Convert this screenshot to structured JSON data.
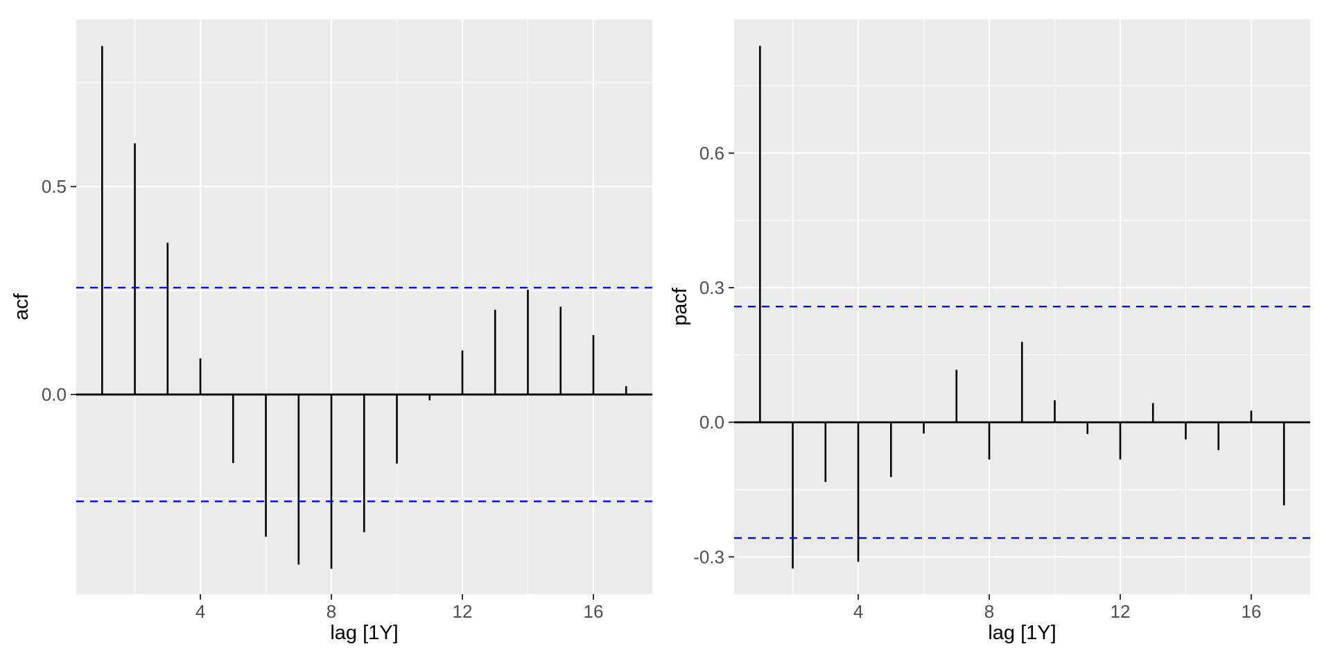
{
  "figure": {
    "background": "#FFFFFF",
    "description": "Side-by-side ACF and PACF correlogram panels, ggplot2 style"
  },
  "colors": {
    "panel_background": "#EBEBEB",
    "gridline": "#FFFFFF",
    "spike": "#000000",
    "zero_line": "#000000",
    "confidence_line": "#0000FF",
    "tick_mark": "#333333",
    "tick_label_text": "#4D4D4D",
    "axis_title_text": "#000000"
  },
  "chart_data": [
    {
      "type": "bar",
      "name": "acf",
      "title": "",
      "xlabel": "lag [1Y]",
      "ylabel": "acf",
      "lags": [
        1,
        2,
        3,
        4,
        5,
        6,
        7,
        8,
        9,
        10,
        11,
        12,
        13,
        14,
        15,
        16,
        17
      ],
      "values": [
        0.838,
        0.604,
        0.365,
        0.087,
        -0.165,
        -0.342,
        -0.409,
        -0.419,
        -0.331,
        -0.166,
        -0.014,
        0.106,
        0.204,
        0.252,
        0.211,
        0.143,
        0.02
      ],
      "confidence_bounds": [
        0.257,
        -0.257
      ],
      "xlim": [
        0.21,
        17.8
      ],
      "ylim": [
        -0.48,
        0.902
      ],
      "x_major": [
        {
          "value": 4,
          "label": "4"
        },
        {
          "value": 8,
          "label": "8"
        },
        {
          "value": 12,
          "label": "12"
        },
        {
          "value": 16,
          "label": "16"
        }
      ],
      "x_minor": [
        2,
        6,
        10,
        14
      ],
      "y_major": [
        {
          "value": 0.0,
          "label": "0.0"
        },
        {
          "value": 0.5,
          "label": "0.5"
        }
      ],
      "y_minor": [
        -0.25,
        0.25,
        0.75
      ],
      "grid": true,
      "legend": "none"
    },
    {
      "type": "bar",
      "name": "pacf",
      "title": "",
      "xlabel": "lag [1Y]",
      "ylabel": "pacf",
      "lags": [
        1,
        2,
        3,
        4,
        5,
        6,
        7,
        8,
        9,
        10,
        11,
        12,
        13,
        14,
        15,
        16,
        17
      ],
      "values": [
        0.839,
        -0.326,
        -0.133,
        -0.311,
        -0.122,
        -0.025,
        0.117,
        -0.083,
        0.179,
        0.049,
        -0.026,
        -0.083,
        0.043,
        -0.038,
        -0.062,
        0.026,
        -0.185
      ],
      "confidence_bounds": [
        0.258,
        -0.258
      ],
      "xlim": [
        0.21,
        17.8
      ],
      "ylim": [
        -0.383,
        0.898
      ],
      "x_major": [
        {
          "value": 4,
          "label": "4"
        },
        {
          "value": 8,
          "label": "8"
        },
        {
          "value": 12,
          "label": "12"
        },
        {
          "value": 16,
          "label": "16"
        }
      ],
      "x_minor": [
        2,
        6,
        10,
        14
      ],
      "y_major": [
        {
          "value": -0.3,
          "label": "-0.3"
        },
        {
          "value": 0.0,
          "label": "0.0"
        },
        {
          "value": 0.3,
          "label": "0.3"
        },
        {
          "value": 0.6,
          "label": "0.6"
        }
      ],
      "y_minor": [
        -0.15,
        0.15,
        0.45,
        0.75
      ],
      "grid": true,
      "legend": "none"
    }
  ]
}
